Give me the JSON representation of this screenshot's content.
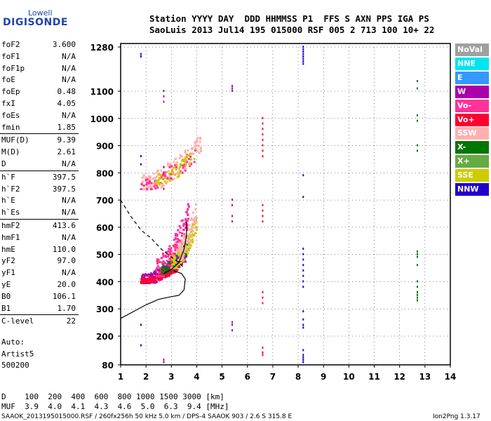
{
  "logo": {
    "line1": "Lowell",
    "line2": "DIGISONDE"
  },
  "header": {
    "line1": "Station YYYY DAY  DDD HHMMSS P1  FFS S AXN PPS IGA PS",
    "line2": "SaoLuis 2013 Jul14 195 015000 RSF 005 2 713 100 10+ 22"
  },
  "params": [
    {
      "name": "foF2",
      "value": "3.600"
    },
    {
      "name": "foF1",
      "value": "N/A"
    },
    {
      "name": "foF1p",
      "value": "N/A"
    },
    {
      "name": "foE",
      "value": "N/A"
    },
    {
      "name": "foEp",
      "value": "0.48"
    },
    {
      "name": "fxI",
      "value": "4.05"
    },
    {
      "name": "foEs",
      "value": "N/A"
    },
    {
      "name": "fmin",
      "value": "1.85"
    },
    {
      "name": "MUF(D)",
      "value": "9.39"
    },
    {
      "name": "M(D)",
      "value": "2.61"
    },
    {
      "name": "D",
      "value": "N/A"
    },
    {
      "name": "h`F",
      "value": "397.5"
    },
    {
      "name": "h`F2",
      "value": "397.5"
    },
    {
      "name": "h`E",
      "value": "N/A"
    },
    {
      "name": "h`Es",
      "value": "N/A"
    },
    {
      "name": "hmF2",
      "value": "413.6"
    },
    {
      "name": "hmF1",
      "value": "N/A"
    },
    {
      "name": "hmE",
      "value": "110.0"
    },
    {
      "name": "yF2",
      "value": "97.0"
    },
    {
      "name": "yF1",
      "value": "N/A"
    },
    {
      "name": "yE",
      "value": "20.0"
    },
    {
      "name": "B0",
      "value": "106.1"
    },
    {
      "name": "B1",
      "value": "1.70"
    },
    {
      "name": "C-level",
      "value": "22"
    }
  ],
  "auto": {
    "line1": "Auto:",
    "line2": "Artist5",
    "line3": "500200"
  },
  "legend": [
    {
      "label": "NoVal",
      "color": "#a0a0a0"
    },
    {
      "label": "NNE",
      "color": "#00e5ee"
    },
    {
      "label": "E",
      "color": "#3399ff"
    },
    {
      "label": "W",
      "color": "#aa00aa"
    },
    {
      "label": "Vo-",
      "color": "#ff3399"
    },
    {
      "label": "Vo+",
      "color": "#ff0033"
    },
    {
      "label": "SSW",
      "color": "#ffb0b0"
    },
    {
      "label": "X-",
      "color": "#007700"
    },
    {
      "label": "X+",
      "color": "#66aa44"
    },
    {
      "label": "SSE",
      "color": "#cccc00"
    },
    {
      "label": "NNW",
      "color": "#2200cc"
    }
  ],
  "footer": {
    "dist_row": "D    100  200  400  600  800 1000 1500 3000 [km]",
    "muf_row": "MUF  3.9  4.0  4.1  4.3  4.6  5.0  6.3  9.4 [MHz]",
    "file_line": "SAAOK_2013195015000.RSF / 260fx256h 50 kHz 5.0 km / DPS-4 SAAOK 903 / 2.6 S 315.8 E",
    "version": "Ion2Png 1.3.17"
  },
  "chart_data": {
    "type": "scatter",
    "xlim": [
      1,
      14
    ],
    "ylim": [
      80,
      1280
    ],
    "x_ticks": [
      1,
      2,
      3,
      4,
      5,
      6,
      7,
      8,
      9,
      10,
      11,
      12,
      13,
      14
    ],
    "y_ticks": [
      80,
      200,
      300,
      400,
      500,
      600,
      700,
      800,
      900,
      1000,
      1100,
      1280
    ],
    "grid": true,
    "clusters": [
      {
        "name": "F-trace",
        "color": "#aa00aa",
        "x_range": [
          1.8,
          3.6
        ],
        "y_range": [
          395,
          520
        ],
        "density": 260
      },
      {
        "name": "F-trace",
        "color": "#ff0033",
        "x_range": [
          1.8,
          3.3
        ],
        "y_range": [
          395,
          470
        ],
        "density": 140
      },
      {
        "name": "F-trace",
        "color": "#ff3399",
        "x_range": [
          2.4,
          3.7
        ],
        "y_range": [
          420,
          700
        ],
        "density": 160
      },
      {
        "name": "F-trace",
        "color": "#007700",
        "x_range": [
          2.6,
          3.7
        ],
        "y_range": [
          430,
          560
        ],
        "density": 60
      },
      {
        "name": "F-trace",
        "color": "#cccc00",
        "x_range": [
          3.0,
          4.0
        ],
        "y_range": [
          450,
          650
        ],
        "density": 120
      },
      {
        "name": "F-trace",
        "color": "#ffb0b0",
        "x_range": [
          3.2,
          4.0
        ],
        "y_range": [
          480,
          700
        ],
        "density": 80
      },
      {
        "name": "F2-2hop",
        "color": "#ffb0b0",
        "x_range": [
          1.8,
          4.2
        ],
        "y_range": [
          740,
          950
        ],
        "density": 160
      },
      {
        "name": "F2-2hop",
        "color": "#ff3399",
        "x_range": [
          1.8,
          4.0
        ],
        "y_range": [
          740,
          900
        ],
        "density": 60
      },
      {
        "name": "F2-2hop",
        "color": "#cccc00",
        "x_range": [
          2.4,
          4.0
        ],
        "y_range": [
          760,
          900
        ],
        "density": 50
      }
    ],
    "columns": [
      {
        "x": 1.8,
        "color": "#2200cc",
        "y_values": [
          1250,
          1240,
          860,
          830,
          240,
          160
        ]
      },
      {
        "x": 2.7,
        "color": "#aa00aa",
        "y_values": [
          1100,
          1080,
          1060,
          820,
          800,
          740,
          100,
          90
        ]
      },
      {
        "x": 5.4,
        "color": "#aa00aa",
        "y_values": [
          1120,
          1110,
          1100,
          700,
          680,
          640,
          620,
          250,
          240,
          220
        ]
      },
      {
        "x": 6.6,
        "color": "#ff0033",
        "y_values": [
          1000,
          980,
          960,
          940,
          920,
          900,
          880,
          860,
          680,
          660,
          640,
          620,
          360,
          340,
          320,
          150,
          130,
          120
        ]
      },
      {
        "x": 8.2,
        "color": "#2200cc",
        "y_values": [
          1280,
          1270,
          1260,
          1250,
          1240,
          1230,
          1220,
          1210,
          790,
          710,
          520,
          500,
          480,
          460,
          440,
          420,
          400,
          380,
          290,
          260,
          240,
          230,
          140,
          120,
          110,
          100,
          90
        ]
      },
      {
        "x": 12.7,
        "color": "#007700",
        "y_values": [
          1140,
          1110,
          1010,
          990,
          900,
          880,
          510,
          500,
          490,
          460,
          400,
          380,
          360,
          350,
          340,
          330,
          330
        ]
      }
    ],
    "curves": [
      {
        "name": "profile-solid",
        "style": "solid",
        "points": [
          [
            1.0,
            265
          ],
          [
            1.5,
            290
          ],
          [
            2.0,
            315
          ],
          [
            2.5,
            335
          ],
          [
            3.0,
            345
          ],
          [
            3.3,
            350
          ],
          [
            3.5,
            370
          ],
          [
            3.55,
            410
          ],
          [
            3.4,
            430
          ],
          [
            3.1,
            440
          ]
        ]
      },
      {
        "name": "profile-dashed",
        "style": "dashed",
        "points": [
          [
            1.0,
            700
          ],
          [
            1.4,
            640
          ],
          [
            1.8,
            590
          ],
          [
            2.2,
            560
          ],
          [
            2.6,
            520
          ],
          [
            3.0,
            490
          ],
          [
            3.3,
            470
          ],
          [
            3.5,
            450
          ]
        ]
      },
      {
        "name": "trace-fit",
        "style": "solid",
        "points": [
          [
            2.7,
            430
          ],
          [
            3.0,
            445
          ],
          [
            3.3,
            470
          ],
          [
            3.5,
            520
          ],
          [
            3.6,
            570
          ],
          [
            3.6,
            620
          ]
        ]
      }
    ]
  }
}
